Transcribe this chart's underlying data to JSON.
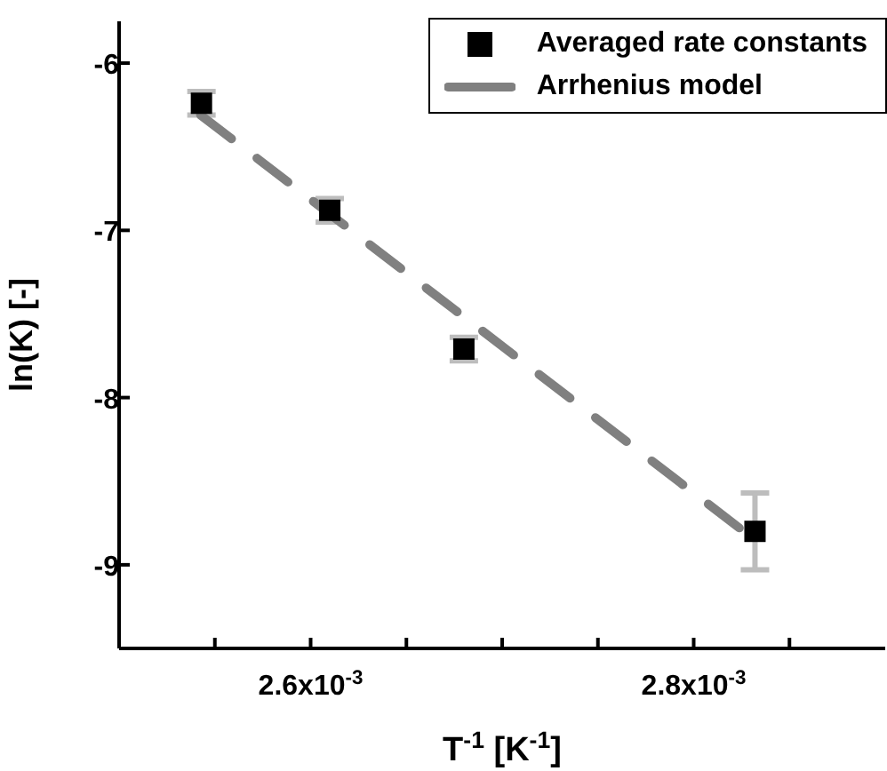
{
  "chart_data": {
    "type": "scatter",
    "xlabel": "T$^{-1}$ [K$^{-1}$]",
    "ylabel": "ln(K) [-]",
    "xlim": [
      0.0025,
      0.0029
    ],
    "ylim": [
      -9.5,
      -5.75
    ],
    "xticks": [
      {
        "value": 0.00255,
        "label": null
      },
      {
        "value": 0.0026,
        "label": "2.6x10$^{-3}$"
      },
      {
        "value": 0.00265,
        "label": null
      },
      {
        "value": 0.0027,
        "label": null
      },
      {
        "value": 0.00275,
        "label": null
      },
      {
        "value": 0.0028,
        "label": "2.8x10$^{-3}$"
      },
      {
        "value": 0.00285,
        "label": null
      }
    ],
    "yticks": [
      -9,
      -8,
      -7,
      -6
    ],
    "legend": "top right",
    "grid": false,
    "series": [
      {
        "name": "Averaged rate constants",
        "type": "scatter",
        "color": "#000000",
        "marker": "square",
        "x": [
          0.002543,
          0.00261,
          0.00268,
          0.002832
        ],
        "values": [
          -6.24,
          -6.88,
          -7.71,
          -8.8
        ],
        "errors": [
          0.07,
          0.07,
          0.07,
          0.23
        ]
      },
      {
        "name": "Arrhenius model",
        "type": "line",
        "color": "#808080",
        "line_style": "dashed",
        "marker": "none",
        "x": [
          0.0025425,
          0.002833
        ],
        "values": [
          -6.31,
          -8.86
        ]
      }
    ]
  }
}
